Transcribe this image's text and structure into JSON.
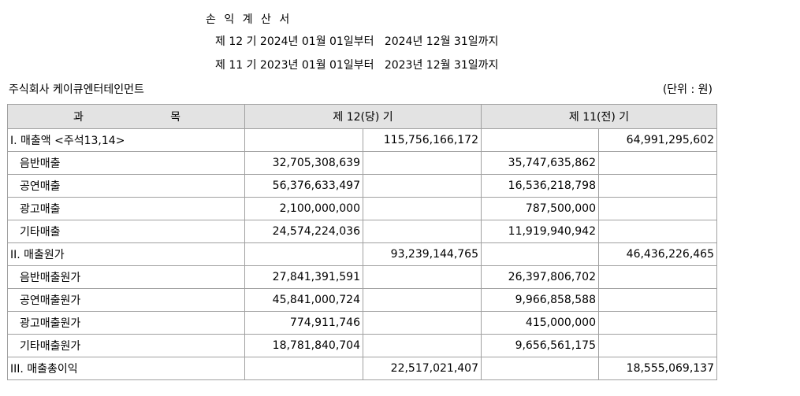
{
  "header": {
    "title": "손 익 계 산 서",
    "period_current": "제 12 기 2024년 01월 01일부터   2024년 12월 31일까지",
    "period_prior": "제 11 기 2023년 01월 01일부터   2023년 12월 31일까지",
    "company": "주식회사 케이큐엔터테인먼트",
    "unit": "(단위 : 원)"
  },
  "table": {
    "col_account_left": "과",
    "col_account_right": "목",
    "col_current": "제 12(당) 기",
    "col_prior": "제 11(전) 기",
    "rows": [
      {
        "account": "I. 매출액 <주석13,14>",
        "cur_detail": "",
        "cur_total": "115,756,166,172",
        "pri_detail": "",
        "pri_total": "64,991,295,602"
      },
      {
        "account": "음반매출",
        "cur_detail": "32,705,308,639",
        "cur_total": "",
        "pri_detail": "35,747,635,862",
        "pri_total": ""
      },
      {
        "account": "공연매출",
        "cur_detail": "56,376,633,497",
        "cur_total": "",
        "pri_detail": "16,536,218,798",
        "pri_total": ""
      },
      {
        "account": "광고매출",
        "cur_detail": "2,100,000,000",
        "cur_total": "",
        "pri_detail": "787,500,000",
        "pri_total": ""
      },
      {
        "account": "기타매출",
        "cur_detail": "24,574,224,036",
        "cur_total": "",
        "pri_detail": "11,919,940,942",
        "pri_total": ""
      },
      {
        "account": "II. 매출원가",
        "cur_detail": "",
        "cur_total": "93,239,144,765",
        "pri_detail": "",
        "pri_total": "46,436,226,465"
      },
      {
        "account": "음반매출원가",
        "cur_detail": "27,841,391,591",
        "cur_total": "",
        "pri_detail": "26,397,806,702",
        "pri_total": ""
      },
      {
        "account": "공연매출원가",
        "cur_detail": "45,841,000,724",
        "cur_total": "",
        "pri_detail": "9,966,858,588",
        "pri_total": ""
      },
      {
        "account": "광고매출원가",
        "cur_detail": "774,911,746",
        "cur_total": "",
        "pri_detail": "415,000,000",
        "pri_total": ""
      },
      {
        "account": "기타매출원가",
        "cur_detail": "18,781,840,704",
        "cur_total": "",
        "pri_detail": "9,656,561,175",
        "pri_total": ""
      },
      {
        "account": "III. 매출총이익",
        "cur_detail": "",
        "cur_total": "22,517,021,407",
        "pri_detail": "",
        "pri_total": "18,555,069,137"
      }
    ]
  }
}
